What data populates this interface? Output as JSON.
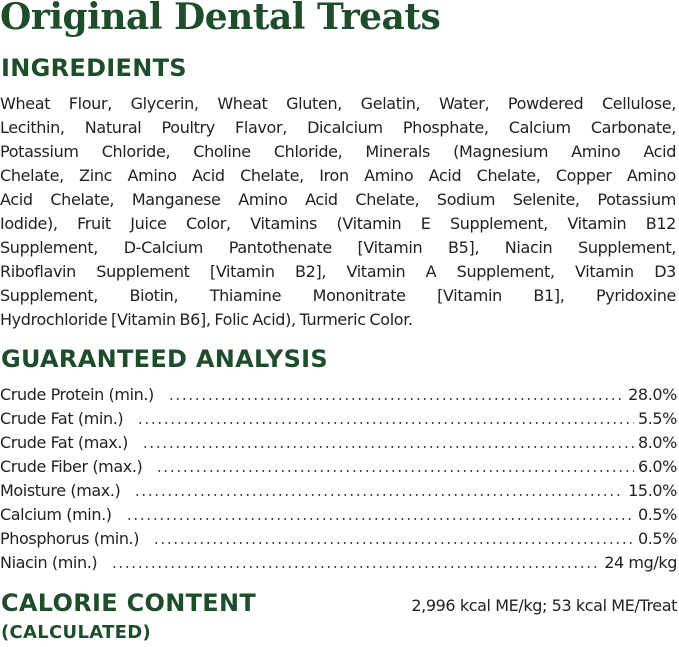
{
  "title": "Original Dental Treats",
  "ingredients": {
    "heading": "INGREDIENTS",
    "lines": [
      "Wheat Flour, Glycerin, Wheat Gluten, Gelatin, Water, Powdered Cellulose,",
      "Lecithin, Natural Poultry Flavor, Dicalcium Phosphate, Calcium Carbonate,",
      "Potassium Chloride, Choline Chloride, Minerals (Magnesium Amino Acid",
      "Chelate, Zinc Amino Acid Chelate, Iron Amino Acid Chelate, Copper Amino",
      "Acid Chelate, Manganese Amino Acid Chelate, Sodium Selenite, Potassium",
      "Iodide), Fruit Juice Color, Vitamins (Vitamin E Supplement, Vitamin B12",
      "Supplement, D-Calcium Pantothenate [Vitamin B5], Niacin Supplement,",
      "Riboflavin Supplement [Vitamin B2], Vitamin A Supplement, Vitamin D3",
      "Supplement, Biotin, Thiamine Mononitrate [Vitamin B1], Pyridoxine",
      "Hydrochloride [Vitamin B6], Folic Acid), Turmeric Color."
    ]
  },
  "analysis": {
    "heading": "GUARANTEED ANALYSIS",
    "rows": [
      {
        "label": "Crude Protein (min.)",
        "value": "28.0%"
      },
      {
        "label": "Crude Fat (min.)",
        "value": "5.5%"
      },
      {
        "label": "Crude Fat (max.)",
        "value": "8.0%"
      },
      {
        "label": "Crude Fiber (max.)",
        "value": "6.0%"
      },
      {
        "label": "Moisture (max.)",
        "value": "15.0%"
      },
      {
        "label": "Calcium (min.)",
        "value": "0.5%"
      },
      {
        "label": "Phosphorus (min.)",
        "value": "0.5%"
      },
      {
        "label": "Niacin (min.)",
        "value": "24 mg/kg"
      }
    ]
  },
  "calorie": {
    "heading": "CALORIE CONTENT",
    "subheading": "(CALCULATED)",
    "value": "2,996 kcal ME/kg; 53 kcal ME/Treat"
  },
  "colors": {
    "heading_green": "#1e4d2b",
    "body_text": "#222222"
  }
}
